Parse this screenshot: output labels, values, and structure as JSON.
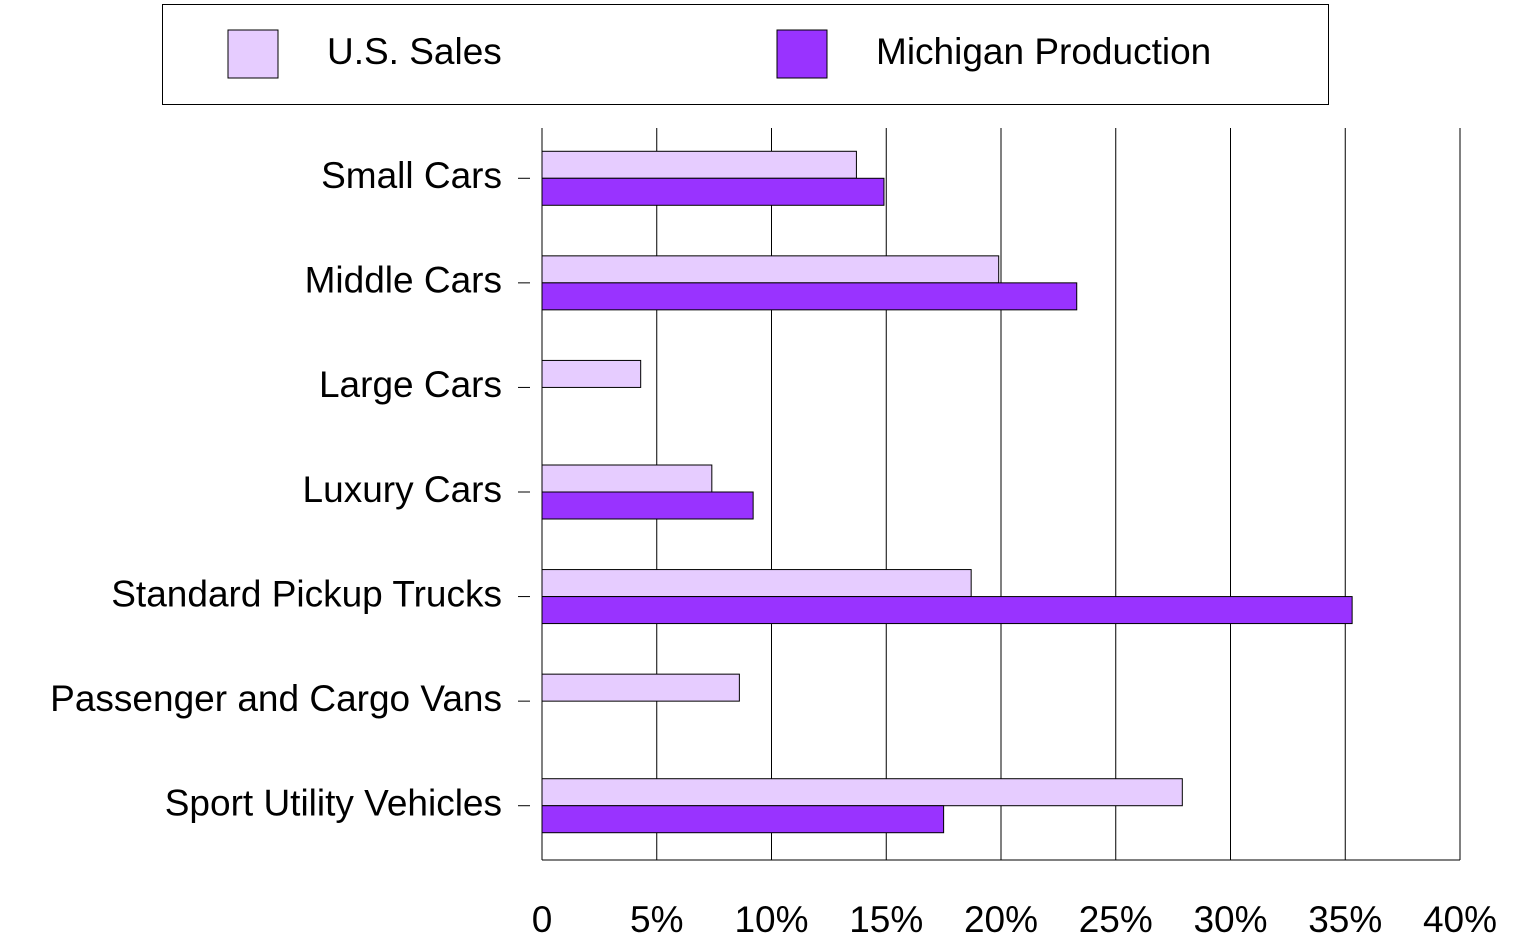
{
  "chart_data": {
    "type": "hbar",
    "categories": [
      "Small Cars",
      "Middle Cars",
      "Large Cars",
      "Luxury Cars",
      "Standard Pickup Trucks",
      "Passenger and Cargo Vans",
      "Sport Utility Vehicles"
    ],
    "series": [
      {
        "name": "U.S. Sales",
        "color": "#e6ccff",
        "values": [
          13.7,
          19.9,
          4.3,
          7.4,
          18.7,
          8.6,
          27.9
        ]
      },
      {
        "name": "Michigan Production",
        "color": "#9933ff",
        "values": [
          14.9,
          23.3,
          0,
          9.2,
          35.3,
          0,
          17.5
        ]
      }
    ],
    "xlim": [
      0,
      40
    ],
    "xticks": [
      0,
      {
        "value": 5,
        "label": "5%"
      },
      {
        "value": 10,
        "label": "10%"
      },
      {
        "value": 15,
        "label": "15%"
      },
      {
        "value": 20,
        "label": "20%"
      },
      {
        "value": 25,
        "label": "25%"
      },
      {
        "value": 30,
        "label": "30%"
      },
      {
        "value": 35,
        "label": "35%"
      },
      {
        "value": 40,
        "label": "40%"
      }
    ],
    "grid": true,
    "legend": "top"
  }
}
